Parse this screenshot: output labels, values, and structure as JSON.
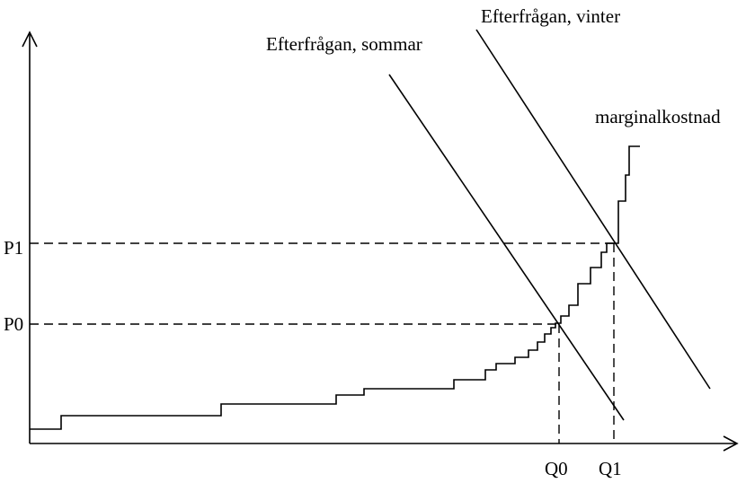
{
  "labels": {
    "demand_winter": "Efterfrågan, vinter",
    "demand_summer": "Efterfrågan, sommar",
    "marginal_cost": "marginalkostnad",
    "p1": "P1",
    "p0": "P0",
    "q0": "Q0",
    "q1": "Q1"
  }
}
